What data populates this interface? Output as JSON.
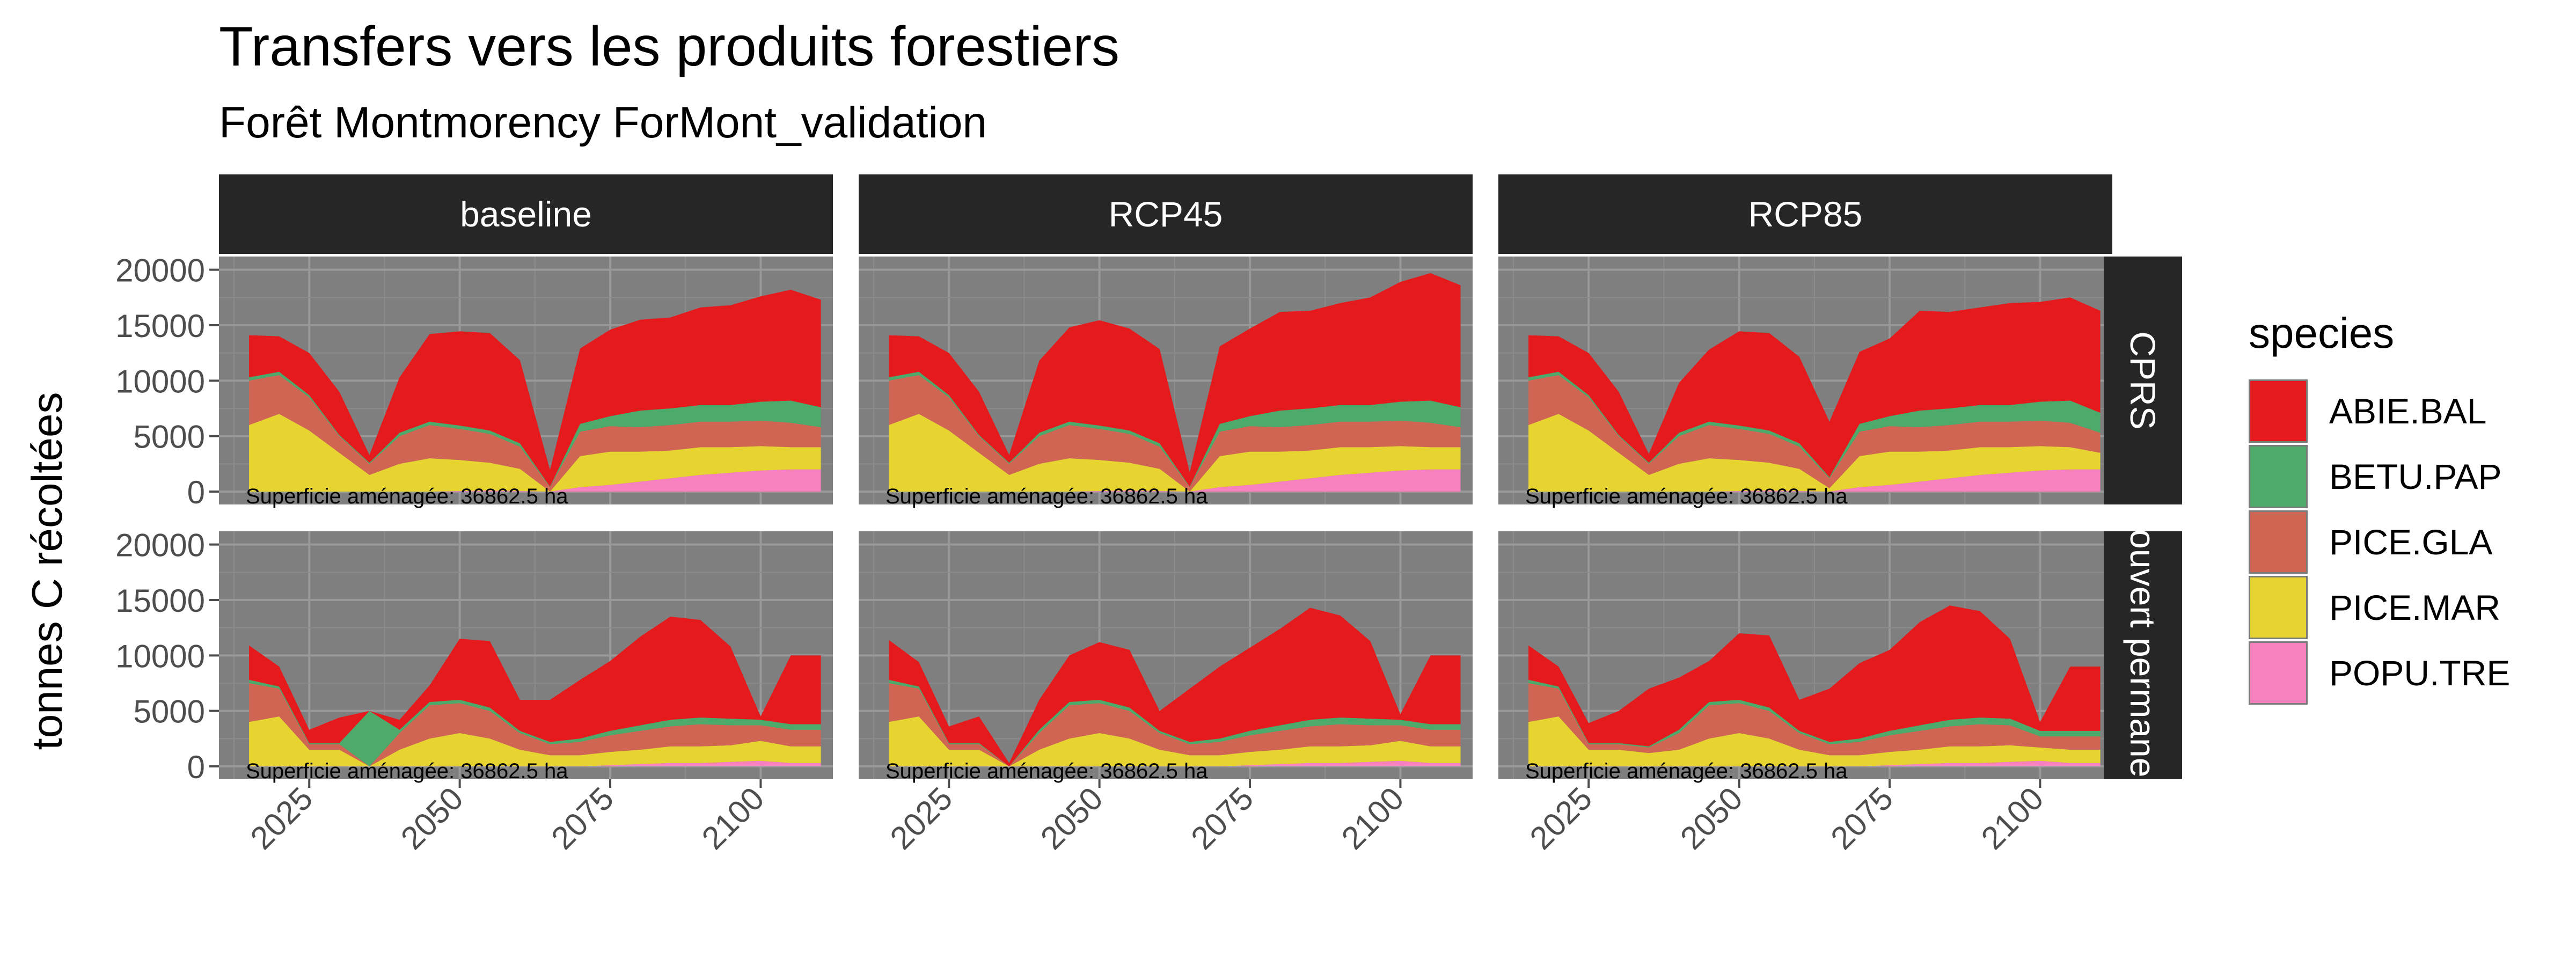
{
  "title": "Transfers vers les produits forestiers",
  "subtitle": "Forêt Montmorency ForMont_validation",
  "ylabel": "tonnes C récoltées",
  "panel_note": "Superficie aménagée: 36862.5 ha",
  "column_labels": [
    "baseline",
    "RCP45",
    "RCP85"
  ],
  "row_labels": [
    "CPRS",
    "Couvert permanent"
  ],
  "legend": {
    "title": "species",
    "items": [
      {
        "label": "ABIE.BAL",
        "color": "#E41A1C"
      },
      {
        "label": "BETU.PAP",
        "color": "#4DAA6B"
      },
      {
        "label": "PICE.GLA",
        "color": "#CF6552"
      },
      {
        "label": "PICE.MAR",
        "color": "#E8D430"
      },
      {
        "label": "POPU.TRE",
        "color": "#F781BF"
      }
    ]
  },
  "chart_data": {
    "type": "area",
    "stacked": true,
    "panel_background": "#7F7F7F",
    "grid": true,
    "legend_position": "right",
    "xlim": [
      2010,
      2112
    ],
    "ylim": [
      0,
      21000
    ],
    "x_ticks": [
      2025,
      2050,
      2075,
      2100
    ],
    "y_ticks": [
      0,
      5000,
      10000,
      15000,
      20000
    ],
    "x": [
      2015,
      2020,
      2025,
      2030,
      2035,
      2040,
      2045,
      2050,
      2055,
      2060,
      2065,
      2070,
      2075,
      2080,
      2085,
      2090,
      2095,
      2100,
      2105,
      2110
    ],
    "series_order": [
      "POPU.TRE",
      "PICE.MAR",
      "PICE.GLA",
      "BETU.PAP",
      "ABIE.BAL"
    ],
    "panels": [
      {
        "column": "baseline",
        "row": "CPRS",
        "stacks": {
          "POPU.TRE": [
            0,
            0,
            0,
            0,
            0,
            0,
            0,
            50,
            100,
            50,
            0,
            400,
            600,
            900,
            1200,
            1500,
            1700,
            1900,
            2000,
            2000
          ],
          "PICE.MAR": [
            6000,
            7000,
            5500,
            3500,
            1500,
            2500,
            3000,
            2800,
            2500,
            2000,
            0,
            2800,
            3000,
            2700,
            2500,
            2500,
            2300,
            2200,
            2000,
            2000
          ],
          "PICE.GLA": [
            4000,
            3500,
            3000,
            1500,
            1000,
            2500,
            3000,
            2800,
            2600,
            2000,
            400,
            2200,
            2300,
            2200,
            2300,
            2300,
            2300,
            2300,
            2200,
            1800
          ],
          "BETU.PAP": [
            300,
            300,
            200,
            100,
            100,
            300,
            300,
            300,
            300,
            300,
            50,
            700,
            900,
            1500,
            1500,
            1500,
            1500,
            1700,
            2000,
            1800
          ],
          "ABIE.BAL": [
            3800,
            3200,
            3800,
            3900,
            700,
            5000,
            7900,
            8500,
            8800,
            7500,
            1500,
            6800,
            7800,
            8200,
            8200,
            8800,
            9000,
            9500,
            10000,
            9700
          ]
        }
      },
      {
        "column": "RCP45",
        "row": "CPRS",
        "stacks": {
          "POPU.TRE": [
            0,
            0,
            0,
            0,
            0,
            0,
            0,
            50,
            100,
            50,
            0,
            400,
            600,
            900,
            1200,
            1500,
            1700,
            1900,
            2000,
            2000
          ],
          "PICE.MAR": [
            6000,
            7000,
            5500,
            3500,
            1500,
            2500,
            3000,
            2800,
            2500,
            2000,
            0,
            2800,
            3000,
            2700,
            2500,
            2500,
            2300,
            2200,
            2000,
            2000
          ],
          "PICE.GLA": [
            4000,
            3500,
            3000,
            1500,
            1000,
            2500,
            3000,
            2800,
            2600,
            2000,
            400,
            2200,
            2300,
            2200,
            2300,
            2300,
            2300,
            2300,
            2200,
            1800
          ],
          "BETU.PAP": [
            300,
            300,
            200,
            100,
            100,
            300,
            300,
            300,
            300,
            300,
            50,
            700,
            900,
            1500,
            1500,
            1500,
            1500,
            1700,
            2000,
            1800
          ],
          "ABIE.BAL": [
            3800,
            3200,
            3800,
            3900,
            700,
            6500,
            8500,
            9500,
            9200,
            8500,
            1300,
            7000,
            7900,
            8900,
            8800,
            9200,
            9700,
            10800,
            11500,
            11000
          ]
        }
      },
      {
        "column": "RCP85",
        "row": "CPRS",
        "stacks": {
          "POPU.TRE": [
            0,
            0,
            0,
            0,
            0,
            0,
            0,
            50,
            100,
            50,
            0,
            400,
            600,
            900,
            1200,
            1500,
            1700,
            1900,
            2000,
            2000
          ],
          "PICE.MAR": [
            6000,
            7000,
            5500,
            3500,
            1500,
            2500,
            3000,
            2800,
            2500,
            2000,
            300,
            2800,
            3000,
            2700,
            2500,
            2500,
            2300,
            2200,
            2000,
            1500
          ],
          "PICE.GLA": [
            4000,
            3500,
            3000,
            1500,
            1000,
            2500,
            3000,
            2800,
            2600,
            2000,
            900,
            2200,
            2300,
            2200,
            2300,
            2300,
            2300,
            2300,
            2200,
            1800
          ],
          "BETU.PAP": [
            300,
            300,
            200,
            100,
            100,
            300,
            300,
            300,
            300,
            300,
            100,
            700,
            900,
            1500,
            1500,
            1500,
            1500,
            1700,
            2000,
            1800
          ],
          "ABIE.BAL": [
            3800,
            3200,
            3800,
            3900,
            800,
            4500,
            6500,
            8500,
            8800,
            7800,
            5000,
            6500,
            7000,
            9000,
            8700,
            8800,
            9200,
            9000,
            9300,
            9200
          ]
        }
      },
      {
        "column": "baseline",
        "row": "Couvert permanent",
        "stacks": {
          "POPU.TRE": [
            0,
            0,
            0,
            0,
            0,
            0,
            0,
            0,
            0,
            0,
            0,
            0,
            100,
            200,
            300,
            300,
            400,
            500,
            300,
            300
          ],
          "PICE.MAR": [
            4000,
            4500,
            1500,
            1500,
            0,
            1500,
            2500,
            3000,
            2500,
            1500,
            1000,
            1000,
            1200,
            1300,
            1500,
            1500,
            1500,
            1800,
            1500,
            1500
          ],
          "PICE.GLA": [
            3500,
            2500,
            500,
            500,
            0,
            1500,
            3000,
            2700,
            2500,
            1500,
            1000,
            1200,
            1500,
            1700,
            1800,
            2000,
            1800,
            1400,
            1500,
            1500
          ],
          "BETU.PAP": [
            300,
            200,
            100,
            100,
            5000,
            300,
            300,
            300,
            300,
            200,
            200,
            300,
            400,
            500,
            600,
            600,
            600,
            500,
            500,
            500
          ],
          "ABIE.BAL": [
            3100,
            1800,
            1200,
            2300,
            0,
            900,
            1500,
            5500,
            6000,
            2800,
            3800,
            5300,
            6300,
            8000,
            9300,
            8800,
            6500,
            300,
            6200,
            6200
          ]
        }
      },
      {
        "column": "RCP45",
        "row": "Couvert permanent",
        "stacks": {
          "POPU.TRE": [
            0,
            0,
            0,
            0,
            0,
            0,
            0,
            0,
            0,
            0,
            0,
            0,
            100,
            200,
            300,
            300,
            400,
            500,
            300,
            300
          ],
          "PICE.MAR": [
            4000,
            4500,
            1500,
            1500,
            0,
            1500,
            2500,
            3000,
            2500,
            1500,
            1000,
            1000,
            1200,
            1300,
            1500,
            1500,
            1500,
            1800,
            1500,
            1500
          ],
          "PICE.GLA": [
            3500,
            2500,
            500,
            500,
            0,
            1500,
            3000,
            2700,
            2500,
            1500,
            1000,
            1200,
            1500,
            1700,
            1800,
            2000,
            1800,
            1400,
            1500,
            1500
          ],
          "BETU.PAP": [
            300,
            200,
            100,
            100,
            0,
            300,
            300,
            300,
            300,
            200,
            200,
            300,
            400,
            500,
            600,
            600,
            600,
            500,
            500,
            500
          ],
          "ABIE.BAL": [
            3600,
            2200,
            1500,
            2400,
            300,
            2700,
            4200,
            5200,
            5200,
            1800,
            4800,
            6500,
            7500,
            8700,
            10100,
            9200,
            7000,
            500,
            6200,
            6200
          ]
        }
      },
      {
        "column": "RCP85",
        "row": "Couvert permanent",
        "stacks": {
          "POPU.TRE": [
            0,
            0,
            0,
            0,
            0,
            0,
            0,
            0,
            0,
            0,
            0,
            0,
            100,
            200,
            300,
            300,
            400,
            500,
            300,
            300
          ],
          "PICE.MAR": [
            4000,
            4500,
            1500,
            1500,
            1200,
            1500,
            2500,
            3000,
            2500,
            1500,
            1000,
            1000,
            1200,
            1300,
            1500,
            1500,
            1500,
            1200,
            1200,
            1200
          ],
          "PICE.GLA": [
            3500,
            2500,
            500,
            500,
            500,
            1500,
            3000,
            2700,
            2500,
            1500,
            1000,
            1200,
            1500,
            1700,
            1800,
            2000,
            1800,
            1000,
            1200,
            1200
          ],
          "BETU.PAP": [
            300,
            200,
            100,
            100,
            100,
            300,
            300,
            300,
            300,
            200,
            200,
            300,
            400,
            500,
            600,
            600,
            600,
            500,
            500,
            500
          ],
          "ABIE.BAL": [
            3100,
            1800,
            1800,
            2900,
            5200,
            4700,
            3700,
            6000,
            6500,
            2800,
            4800,
            6800,
            7300,
            9300,
            10300,
            9600,
            7200,
            800,
            5800,
            5800
          ]
        }
      }
    ]
  }
}
